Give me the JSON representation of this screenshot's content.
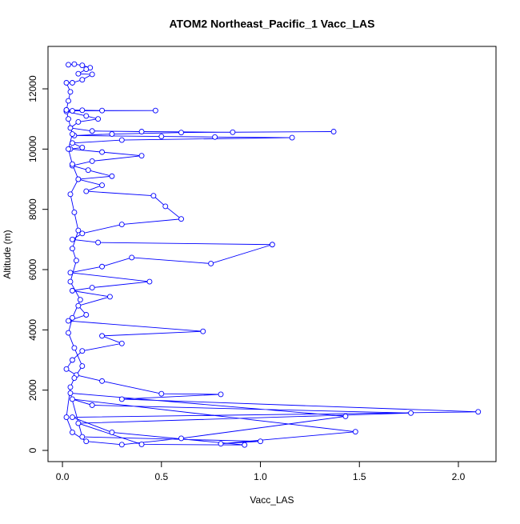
{
  "chart_data": {
    "type": "line",
    "title": "ATOM2 Northeast_Pacific_1 Vacc_LAS",
    "x_label": "Vacc_LAS",
    "y_label": "Altitude (m)",
    "color": "#0000ff",
    "markers": true,
    "x": [
      0.03,
      0.06,
      0.1,
      0.14,
      0.12,
      0.08,
      0.15,
      0.1,
      0.05,
      0.02,
      0.04,
      0.03,
      0.02,
      0.1,
      0.2,
      0.47,
      0.05,
      0.02,
      0.12,
      0.18,
      0.08,
      0.04,
      0.15,
      0.4,
      0.86,
      1.37,
      0.6,
      0.25,
      0.06,
      0.5,
      0.77,
      1.16,
      0.3,
      0.05,
      0.1,
      0.04,
      0.2,
      0.4,
      0.15,
      0.05,
      0.13,
      0.25,
      0.08,
      0.2,
      0.12,
      0.46,
      0.52,
      0.6,
      0.3,
      0.1,
      0.05,
      0.18,
      1.06,
      0.75,
      0.35,
      0.2,
      0.04,
      0.44,
      0.15,
      0.05,
      0.24,
      0.08,
      0.12,
      0.03,
      0.71,
      0.2,
      0.3,
      0.1,
      0.05,
      0.02,
      0.07,
      0.2,
      0.5,
      0.8,
      0.3,
      2.1,
      0.05,
      0.25,
      0.92,
      0.4,
      0.08,
      1.76,
      0.15,
      0.05,
      1.48,
      0.8,
      1.0,
      0.1,
      0.04,
      1.43,
      0.6,
      0.3,
      0.12,
      0.05,
      0.02,
      0.04,
      0.06,
      0.1,
      0.06,
      0.03,
      0.05,
      0.09,
      0.04,
      0.07,
      0.05,
      0.08,
      0.06,
      0.04,
      0.08,
      0.05,
      0.03,
      0.05,
      0.03,
      0.02
    ],
    "values": [
      12800,
      12820,
      12780,
      12700,
      12650,
      12500,
      12480,
      12300,
      12200,
      12200,
      11900,
      11600,
      11300,
      11290,
      11280,
      11280,
      11270,
      11250,
      11100,
      11000,
      10900,
      10700,
      10600,
      10580,
      10560,
      10580,
      10550,
      10500,
      10450,
      10420,
      10400,
      10380,
      10300,
      10200,
      10050,
      10000,
      9900,
      9780,
      9600,
      9450,
      9300,
      9100,
      9000,
      8800,
      8600,
      8450,
      8100,
      7680,
      7500,
      7200,
      7000,
      6900,
      6830,
      6200,
      6400,
      6100,
      5900,
      5600,
      5400,
      5300,
      5100,
      4800,
      4500,
      4300,
      3950,
      3800,
      3550,
      3300,
      3000,
      2700,
      2500,
      2300,
      1880,
      1860,
      1700,
      1280,
      1100,
      600,
      180,
      200,
      900,
      1240,
      1500,
      1700,
      620,
      220,
      300,
      450,
      1900,
      1130,
      400,
      190,
      300,
      600,
      1100,
      2100,
      2400,
      2800,
      3400,
      3900,
      4400,
      5000,
      5600,
      6300,
      6700,
      7300,
      7900,
      8500,
      9000,
      9500,
      10000,
      10500,
      11000,
      11300
    ],
    "xlim": [
      -0.073,
      2.19
    ],
    "ylim": [
      -372,
      13408
    ],
    "xticks": [
      {
        "value": 0,
        "label": "0.0"
      },
      0.5,
      {
        "value": 1,
        "label": "1.0"
      },
      1.5,
      {
        "value": 2,
        "label": "2.0"
      }
    ],
    "yticks": [
      0,
      2000,
      4000,
      6000,
      8000,
      10000,
      12000
    ]
  }
}
